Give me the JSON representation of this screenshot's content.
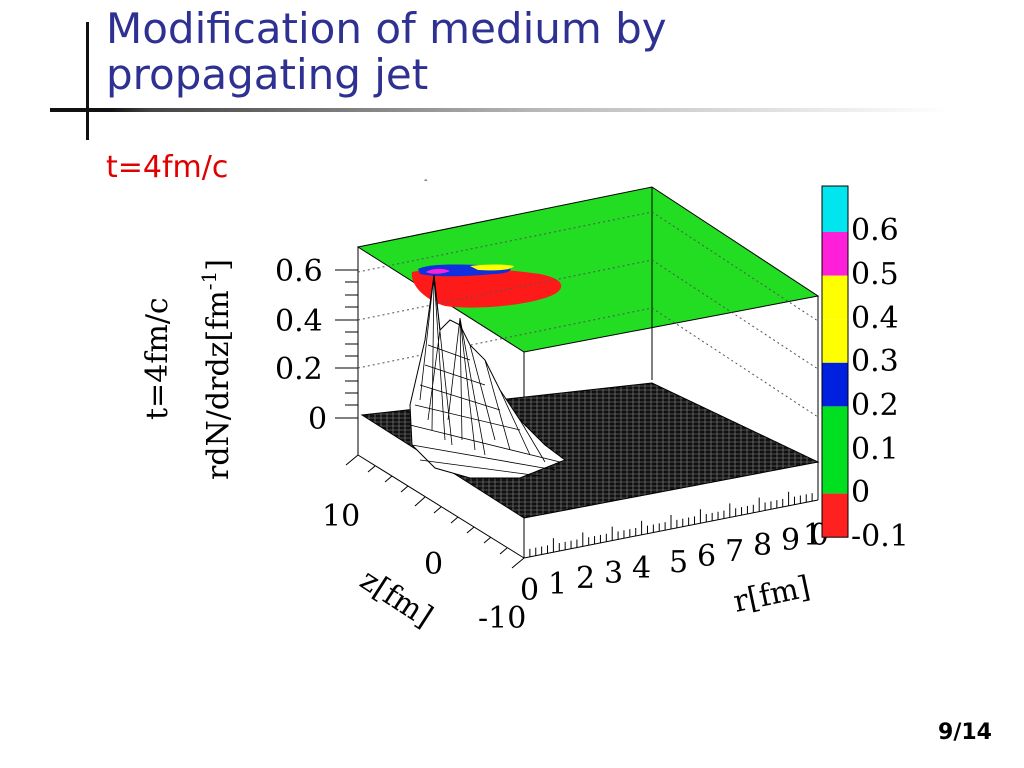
{
  "slide": {
    "title": "Modification of medium by propagating jet",
    "subtitle": "t=4fm/c",
    "page": "9/14"
  },
  "chart_data": {
    "type": "surface3d",
    "title": "",
    "z_axis_label_line1": "t=4fm/c",
    "z_axis_label_line2": "rdN/drdz[fm",
    "z_axis_label_sup": "-1",
    "z_axis_label_close": "]",
    "xlabel": "r[fm]",
    "ylabel": "z[fm]",
    "x_ticks": [
      "0",
      "1",
      "2",
      "3",
      "4",
      "5",
      "6",
      "7",
      "8",
      "9",
      "10"
    ],
    "y_ticks": [
      "10",
      "0",
      "-10"
    ],
    "z_ticks": [
      "0.6",
      "0.4",
      "0.2",
      "0"
    ],
    "zlim": [
      -0.1,
      0.7
    ],
    "colorbar": {
      "labels": [
        "0.6",
        "0.5",
        "0.4",
        "0.3",
        "0.2",
        "0.1",
        "0",
        "-0.1"
      ],
      "colors": [
        "#00e5ee",
        "#ff1fd8",
        "#ffff00",
        "#ffff00",
        "#0020e0",
        "#00e020",
        "#00e020",
        "#ff2020"
      ],
      "top_color": "#00e5ee"
    },
    "peak": {
      "r": 0.3,
      "z": 0,
      "value": 0.6
    }
  }
}
